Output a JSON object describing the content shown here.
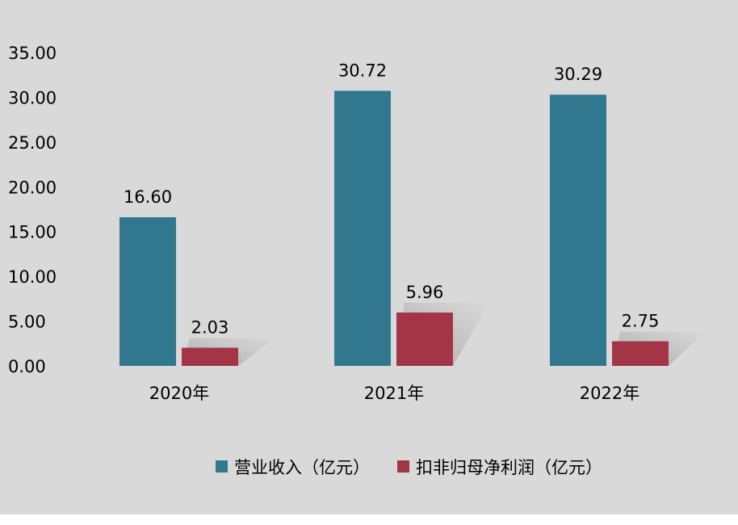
{
  "chart_data": {
    "type": "bar",
    "categories": [
      "2020年",
      "2021年",
      "2022年"
    ],
    "series": [
      {
        "name": "营业收入（亿元）",
        "values": [
          16.6,
          30.72,
          30.29
        ],
        "color": "#31788f"
      },
      {
        "name": "扣非归母净利润（亿元）",
        "values": [
          2.03,
          5.96,
          2.75
        ],
        "color": "#a33547"
      }
    ],
    "data_labels": [
      [
        "16.60",
        "30.72",
        "30.29"
      ],
      [
        "2.03",
        "5.96",
        "2.75"
      ]
    ],
    "yticks": [
      "0.00",
      "5.00",
      "10.00",
      "15.00",
      "20.00",
      "25.00",
      "30.00",
      "35.00"
    ],
    "ylim": [
      0,
      35
    ],
    "grid": false,
    "legend_position": "bottom",
    "background": "#d9d9d9"
  }
}
